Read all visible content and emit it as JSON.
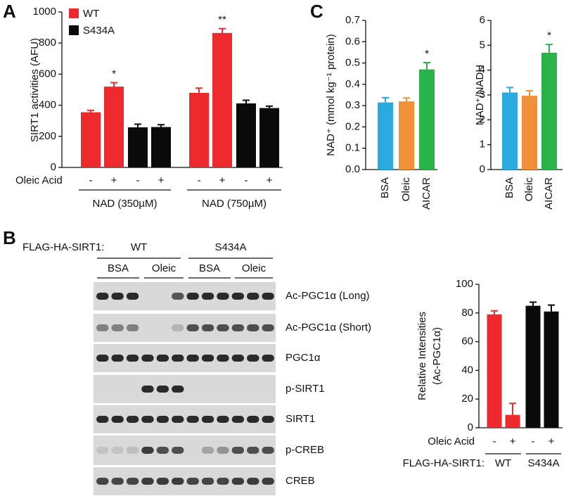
{
  "panel_labels": [
    "A",
    "B",
    "C"
  ],
  "blot": {
    "label": "FLAG-HA-SIRT1:",
    "genotypes": [
      "WT",
      "S434A"
    ],
    "treatments": [
      "BSA",
      "Oleic",
      "BSA",
      "Oleic"
    ],
    "rows": [
      "Ac-PGC1α (Long)",
      "Ac-PGC1α (Short)",
      "PGC1α",
      "p-SIRT1",
      "SIRT1",
      "p-CREB",
      "CREB"
    ]
  },
  "chart_data": [
    {
      "type": "bar",
      "y_label": "SIRT1 activities (AFU)",
      "x_label": "Oleic Acid",
      "categories": [
        "-",
        "+",
        "-",
        "+",
        "-",
        "+",
        "-",
        "+"
      ],
      "groups": [
        "NAD (350µM)",
        "NAD (750µM)"
      ],
      "series": [
        {
          "name": "WT",
          "color": "#ee2a2f",
          "values": [
            355,
            520,
            null,
            null,
            480,
            865,
            null,
            null
          ],
          "errors": [
            12,
            25,
            null,
            null,
            30,
            28,
            null,
            null
          ],
          "annotations": [
            null,
            "*",
            null,
            null,
            null,
            "**",
            null,
            null
          ]
        },
        {
          "name": "S434A",
          "color": "#0a0a0a",
          "values": [
            null,
            null,
            258,
            260,
            null,
            null,
            412,
            382
          ],
          "errors": [
            null,
            null,
            20,
            15,
            null,
            null,
            20,
            12
          ]
        }
      ],
      "ylim": [
        0,
        1000
      ],
      "yticks": [
        0,
        200,
        400,
        600,
        800,
        1000
      ],
      "legend": "top-left"
    },
    {
      "type": "bar",
      "y_label": "NAD⁺ (mmol kg⁻¹ protein)",
      "categories": [
        "BSA",
        "Oleic",
        "AICAR"
      ],
      "values": [
        0.315,
        0.32,
        0.47
      ],
      "errors": [
        0.022,
        0.016,
        0.032
      ],
      "colors": [
        "#29abe2",
        "#f0913a",
        "#2bb34b"
      ],
      "annotations": [
        null,
        null,
        "*"
      ],
      "ylim": [
        0,
        0.7
      ],
      "yticks": [
        {
          "value": 0,
          "label": "0.0"
        },
        0.1,
        0.2,
        0.3,
        0.4,
        0.5,
        0.6,
        0.7
      ]
    },
    {
      "type": "bar",
      "y_label": "NAD⁺/NADH",
      "categories": [
        "BSA",
        "Oleic",
        "AICAR"
      ],
      "values": [
        3.1,
        2.97,
        4.7
      ],
      "errors": [
        0.2,
        0.2,
        0.33
      ],
      "colors": [
        "#29abe2",
        "#f0913a",
        "#2bb34b"
      ],
      "annotations": [
        null,
        null,
        "*"
      ],
      "ylim": [
        0,
        6
      ],
      "yticks": [
        0,
        1,
        2,
        3,
        4,
        5,
        6
      ]
    },
    {
      "type": "bar",
      "y_label": [
        "Relative Intensities",
        "(Ac-PGC1α)"
      ],
      "x_label": "Oleic Acid",
      "group_label": "FLAG-HA-SIRT1:",
      "groups": [
        "WT",
        "S434A"
      ],
      "categories": [
        "-",
        "+",
        "-",
        "+"
      ],
      "values": [
        79,
        9,
        85,
        81
      ],
      "errors": [
        2.5,
        8,
        2.5,
        4.5
      ],
      "colors": [
        "#ee2a2f",
        "#ee2a2f",
        "#0a0a0a",
        "#0a0a0a"
      ],
      "ylim": [
        0,
        100
      ],
      "yticks": [
        0,
        20,
        40,
        60,
        80,
        100
      ]
    }
  ]
}
